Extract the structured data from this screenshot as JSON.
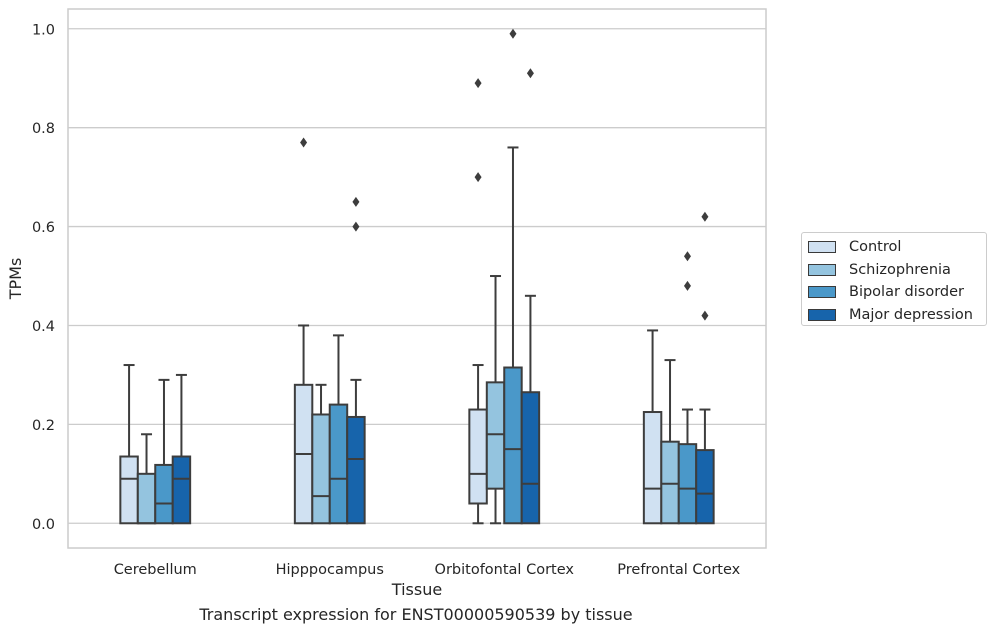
{
  "caption": "Transcript expression for ENST00000590539 by tissue",
  "chart_data": {
    "type": "box",
    "title": "",
    "xlabel": "Tissue",
    "ylabel": "TPMs",
    "ylim": [
      -0.05,
      1.04
    ],
    "yticks": [
      0.0,
      0.2,
      0.4,
      0.6,
      0.8,
      1.0
    ],
    "ytick_labels": [
      "0.0",
      "0.2",
      "0.4",
      "0.6",
      "0.8",
      "1.0"
    ],
    "grid": "horizontal",
    "legend_position": "right",
    "categories": [
      "Cerebellum",
      "Hipppocampus",
      "Orbitofontal Cortex",
      "Prefrontal Cortex"
    ],
    "series": [
      {
        "name": "Control",
        "color": "#d0e1f2",
        "boxes": [
          {
            "whislo": 0.0,
            "q1": 0.0,
            "med": 0.09,
            "q3": 0.135,
            "whishi": 0.32,
            "fliers": []
          },
          {
            "whislo": 0.0,
            "q1": 0.0,
            "med": 0.14,
            "q3": 0.28,
            "whishi": 0.4,
            "fliers": [
              0.77
            ]
          },
          {
            "whislo": 0.0,
            "q1": 0.04,
            "med": 0.1,
            "q3": 0.23,
            "whishi": 0.32,
            "fliers": [
              0.7,
              0.89
            ]
          },
          {
            "whislo": 0.0,
            "q1": 0.0,
            "med": 0.07,
            "q3": 0.225,
            "whishi": 0.39,
            "fliers": []
          }
        ]
      },
      {
        "name": "Schizophrenia",
        "color": "#94c4df",
        "boxes": [
          {
            "whislo": 0.0,
            "q1": 0.0,
            "med": 0.0,
            "q3": 0.1,
            "whishi": 0.18,
            "fliers": []
          },
          {
            "whislo": 0.0,
            "q1": 0.0,
            "med": 0.055,
            "q3": 0.22,
            "whishi": 0.28,
            "fliers": []
          },
          {
            "whislo": 0.0,
            "q1": 0.07,
            "med": 0.18,
            "q3": 0.285,
            "whishi": 0.5,
            "fliers": []
          },
          {
            "whislo": 0.0,
            "q1": 0.0,
            "med": 0.08,
            "q3": 0.165,
            "whishi": 0.33,
            "fliers": []
          }
        ]
      },
      {
        "name": "Bipolar disorder",
        "color": "#4a98c9",
        "boxes": [
          {
            "whislo": 0.0,
            "q1": 0.0,
            "med": 0.04,
            "q3": 0.118,
            "whishi": 0.29,
            "fliers": []
          },
          {
            "whislo": 0.0,
            "q1": 0.0,
            "med": 0.09,
            "q3": 0.24,
            "whishi": 0.38,
            "fliers": []
          },
          {
            "whislo": 0.0,
            "q1": 0.0,
            "med": 0.15,
            "q3": 0.315,
            "whishi": 0.76,
            "fliers": [
              0.99
            ]
          },
          {
            "whislo": 0.0,
            "q1": 0.0,
            "med": 0.07,
            "q3": 0.16,
            "whishi": 0.23,
            "fliers": [
              0.48,
              0.54
            ]
          }
        ]
      },
      {
        "name": "Major depression",
        "color": "#1764ab",
        "boxes": [
          {
            "whislo": 0.0,
            "q1": 0.0,
            "med": 0.09,
            "q3": 0.135,
            "whishi": 0.3,
            "fliers": []
          },
          {
            "whislo": 0.0,
            "q1": 0.0,
            "med": 0.13,
            "q3": 0.215,
            "whishi": 0.29,
            "fliers": [
              0.6,
              0.65
            ]
          },
          {
            "whislo": 0.0,
            "q1": 0.0,
            "med": 0.08,
            "q3": 0.265,
            "whishi": 0.46,
            "fliers": [
              0.91
            ]
          },
          {
            "whislo": 0.0,
            "q1": 0.0,
            "med": 0.06,
            "q3": 0.148,
            "whishi": 0.23,
            "fliers": [
              0.42,
              0.62
            ]
          }
        ]
      }
    ]
  }
}
